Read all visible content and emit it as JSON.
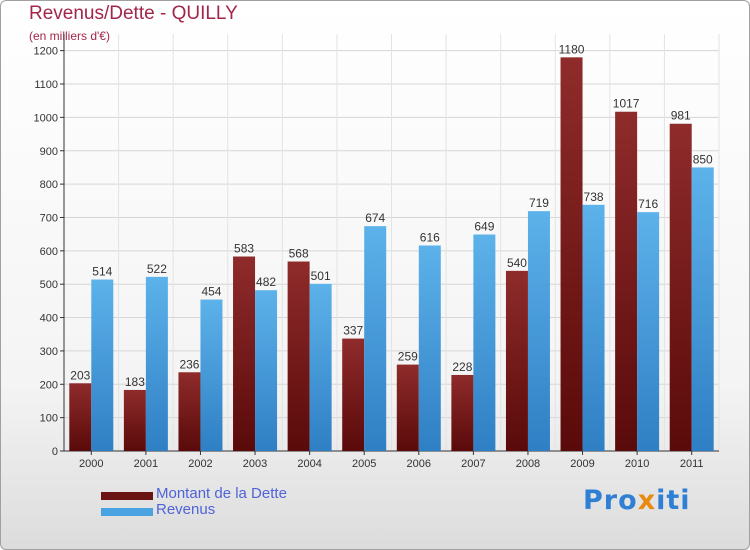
{
  "header": {
    "title": "Revenus/Dette - QUILLY",
    "subtitle": "(en milliers d'€)"
  },
  "colors": {
    "dette": "#7e1f1f",
    "revenus": "#4aa3e0",
    "title": "#a2264a",
    "legend_text": "#4f63d9"
  },
  "chart_data": {
    "type": "bar",
    "title": "Revenus/Dette - QUILLY",
    "subtitle": "(en milliers d'€)",
    "categories": [
      "2000",
      "2001",
      "2002",
      "2003",
      "2004",
      "2005",
      "2006",
      "2007",
      "2008",
      "2009",
      "2010",
      "2011"
    ],
    "series": [
      {
        "name": "Montant de la Dette",
        "values": [
          203,
          183,
          236,
          583,
          568,
          337,
          259,
          228,
          540,
          1180,
          1017,
          981
        ]
      },
      {
        "name": "Revenus",
        "values": [
          514,
          522,
          454,
          482,
          501,
          674,
          616,
          649,
          719,
          738,
          716,
          850
        ]
      }
    ],
    "yticks": [
      0,
      100,
      200,
      300,
      400,
      500,
      600,
      700,
      800,
      900,
      1000,
      1100,
      1200
    ],
    "ylim": [
      0,
      1250
    ],
    "grid": true,
    "legend_position": "bottom-left"
  },
  "legend": {
    "items": [
      {
        "label": "Montant de la Dette"
      },
      {
        "label": "Revenus"
      }
    ]
  },
  "logo": {
    "text": "Proxiti"
  }
}
